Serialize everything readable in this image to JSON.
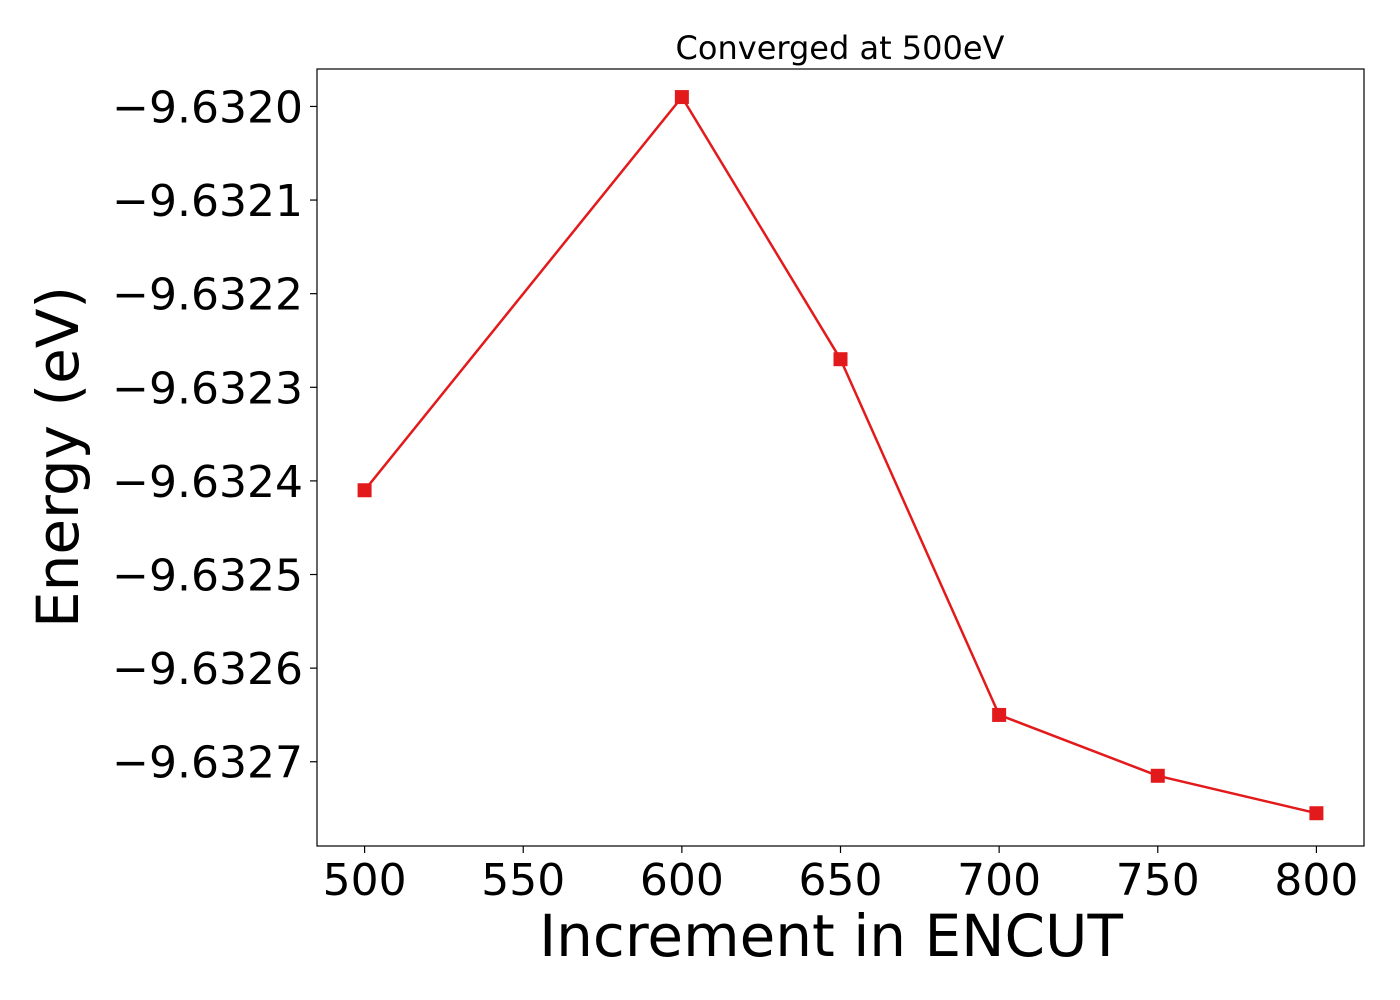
{
  "chart_data": {
    "type": "line",
    "title": "Converged at 500eV",
    "xlabel": "Increment in ENCUT",
    "ylabel": "Energy (eV)",
    "x": [
      500,
      600,
      650,
      700,
      750,
      800
    ],
    "series": [
      {
        "values": [
          -9.63241,
          -9.63199,
          -9.63227,
          -9.63265,
          -9.632715,
          -9.632755
        ],
        "color": "#e31a1c",
        "marker": "square"
      }
    ],
    "xticks": [
      500,
      550,
      600,
      650,
      700,
      750,
      800
    ],
    "xtick_labels": [
      "500",
      "550",
      "600",
      "650",
      "700",
      "750",
      "800"
    ],
    "yticks": [
      -9.632,
      -9.6321,
      -9.6322,
      -9.6323,
      -9.6324,
      -9.6325,
      -9.6326,
      -9.6327
    ],
    "ytick_labels": [
      "−9.6320",
      "−9.6321",
      "−9.6322",
      "−9.6323",
      "−9.6324",
      "−9.6325",
      "−9.6326",
      "−9.6327"
    ],
    "xlim": [
      485,
      815
    ],
    "ylim": [
      -9.63279,
      -9.63196
    ],
    "grid": false,
    "legend": false
  }
}
